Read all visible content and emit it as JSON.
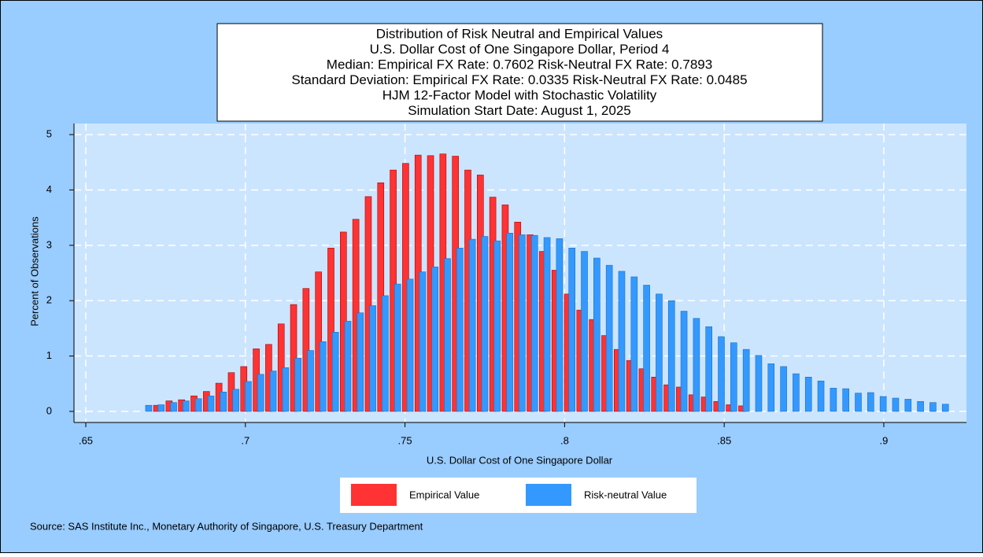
{
  "chart_data": {
    "type": "bar",
    "title": [
      "Distribution of Risk Neutral and Empirical Values",
      "U.S. Dollar Cost of One Singapore Dollar, Period 4",
      "Median: Empirical FX Rate:  0.7602   Risk-Neutral FX Rate:  0.7893",
      "Standard Deviation: Empirical FX Rate:  0.0335   Risk-Neutral FX Rate:  0.0485",
      "HJM 12-Factor Model with Stochastic Volatility",
      "Simulation Start Date: August 1, 2025"
    ],
    "x_label": "U.S. Dollar Cost of One Singapore Dollar",
    "y_label": "Percent of Observations",
    "source": "Source: SAS Institute Inc., Monetary Authority of Singapore, U.S. Treasury Department",
    "xlim": [
      0.6463,
      0.9259
    ],
    "xticks": [
      {
        "value": 0.65,
        "label": ".65"
      },
      {
        "value": 0.7,
        "label": ".7"
      },
      {
        "value": 0.75,
        "label": ".75"
      },
      {
        "value": 0.8,
        "label": ".8"
      },
      {
        "value": 0.85,
        "label": ".85"
      },
      {
        "value": 0.9,
        "label": ".9"
      }
    ],
    "ylim": [
      -0.2,
      5.2
    ],
    "yticks": [
      0,
      1,
      2,
      3,
      4,
      5
    ],
    "grid": true,
    "legend": "bottom",
    "series": [
      {
        "name": "Empirical Value",
        "color": "#ff3333",
        "x": [
          0.6722,
          0.6761,
          0.68,
          0.6839,
          0.6878,
          0.6917,
          0.6956,
          0.6995,
          0.7034,
          0.7073,
          0.7112,
          0.7151,
          0.719,
          0.7229,
          0.7268,
          0.7307,
          0.7346,
          0.7385,
          0.7424,
          0.7463,
          0.7502,
          0.7541,
          0.758,
          0.7619,
          0.7658,
          0.7697,
          0.7736,
          0.7775,
          0.7814,
          0.7853,
          0.7892,
          0.7931,
          0.797,
          0.8009,
          0.8048,
          0.8087,
          0.8126,
          0.8165,
          0.8204,
          0.8243,
          0.8282,
          0.8321,
          0.836,
          0.8399,
          0.8438,
          0.8477,
          0.8516,
          0.8555
        ],
        "values": [
          0.11,
          0.19,
          0.21,
          0.28,
          0.36,
          0.51,
          0.7,
          0.81,
          1.13,
          1.21,
          1.58,
          1.93,
          2.22,
          2.52,
          2.95,
          3.24,
          3.47,
          3.88,
          4.13,
          4.36,
          4.48,
          4.63,
          4.62,
          4.65,
          4.61,
          4.36,
          4.27,
          3.87,
          3.73,
          3.42,
          3.19,
          2.89,
          2.55,
          2.12,
          1.83,
          1.66,
          1.37,
          1.12,
          0.92,
          0.77,
          0.62,
          0.48,
          0.44,
          0.3,
          0.26,
          0.18,
          0.12,
          0.1
        ]
      },
      {
        "name": "Risk-neutral Value",
        "color": "#3399ff",
        "x": [
          0.6697,
          0.6736,
          0.6775,
          0.6814,
          0.6853,
          0.6892,
          0.6931,
          0.697,
          0.7009,
          0.7048,
          0.7087,
          0.7126,
          0.7165,
          0.7204,
          0.7243,
          0.7282,
          0.7321,
          0.736,
          0.7399,
          0.7438,
          0.7477,
          0.7516,
          0.7555,
          0.7594,
          0.7633,
          0.7672,
          0.7711,
          0.775,
          0.7789,
          0.7828,
          0.7867,
          0.7906,
          0.7945,
          0.7984,
          0.8023,
          0.8062,
          0.8101,
          0.814,
          0.8179,
          0.8218,
          0.8257,
          0.8296,
          0.8335,
          0.8374,
          0.8413,
          0.8452,
          0.8491,
          0.853,
          0.8569,
          0.8608,
          0.8647,
          0.8686,
          0.8725,
          0.8764,
          0.8803,
          0.8842,
          0.8881,
          0.892,
          0.8959,
          0.8998,
          0.9037,
          0.9076,
          0.9115,
          0.9154,
          0.9193
        ],
        "values": [
          0.11,
          0.12,
          0.16,
          0.19,
          0.23,
          0.28,
          0.35,
          0.4,
          0.54,
          0.67,
          0.73,
          0.79,
          0.96,
          1.1,
          1.26,
          1.43,
          1.63,
          1.78,
          1.91,
          2.09,
          2.3,
          2.39,
          2.52,
          2.61,
          2.76,
          2.95,
          3.11,
          3.16,
          3.08,
          3.22,
          3.19,
          3.18,
          3.14,
          3.12,
          2.95,
          2.89,
          2.77,
          2.64,
          2.53,
          2.43,
          2.28,
          2.12,
          2.0,
          1.81,
          1.68,
          1.53,
          1.35,
          1.24,
          1.12,
          1.01,
          0.86,
          0.81,
          0.68,
          0.62,
          0.55,
          0.42,
          0.41,
          0.33,
          0.34,
          0.27,
          0.24,
          0.22,
          0.18,
          0.16,
          0.13
        ]
      }
    ]
  }
}
